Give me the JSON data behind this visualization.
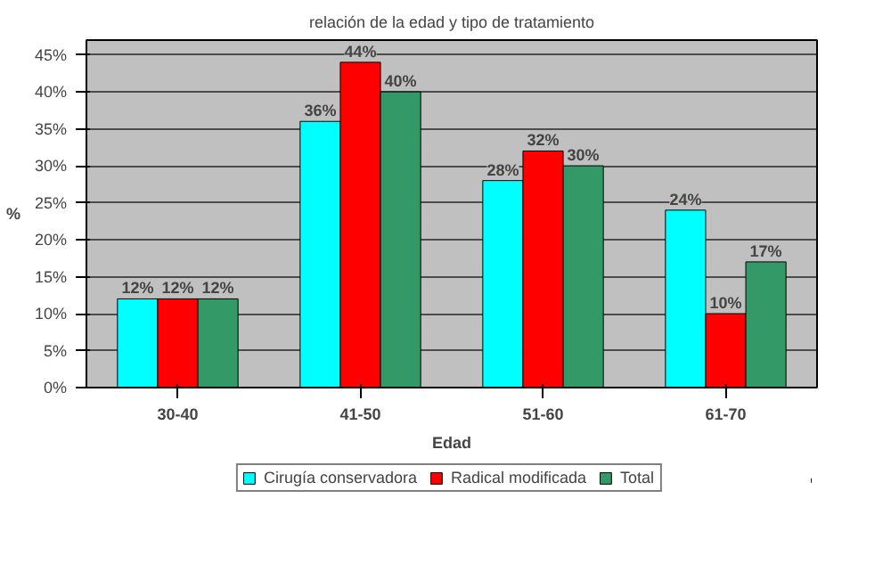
{
  "chart_data": {
    "type": "bar",
    "title": "relación de la edad y tipo de tratamiento",
    "xlabel": "Edad",
    "ylabel": "%",
    "categories": [
      "30-40",
      "41-50",
      "51-60",
      "61-70"
    ],
    "series": [
      {
        "name": "Cirugía conservadora",
        "color": "#00ffff",
        "values": [
          12,
          36,
          28,
          24
        ],
        "value_labels": [
          "12%",
          "36%",
          "28%",
          "24%"
        ]
      },
      {
        "name": "Radical modificada",
        "color": "#ff0000",
        "values": [
          12,
          44,
          32,
          10
        ],
        "value_labels": [
          "12%",
          "44%",
          "32%",
          "10%"
        ]
      },
      {
        "name": "Total",
        "color": "#339966",
        "values": [
          12,
          40,
          30,
          17
        ],
        "value_labels": [
          "12%",
          "40%",
          "30%",
          "17%"
        ]
      }
    ],
    "ylim": [
      0,
      45
    ],
    "yticks": [
      {
        "value": 0,
        "label": "0%"
      },
      {
        "value": 5,
        "label": "5%"
      },
      {
        "value": 10,
        "label": "10%"
      },
      {
        "value": 15,
        "label": "15%"
      },
      {
        "value": 20,
        "label": "20%"
      },
      {
        "value": 25,
        "label": "25%"
      },
      {
        "value": 30,
        "label": "30%"
      },
      {
        "value": 35,
        "label": "35%"
      },
      {
        "value": 40,
        "label": "40%"
      },
      {
        "value": 45,
        "label": "45%"
      }
    ],
    "grid": "y",
    "legend": "bottom"
  }
}
